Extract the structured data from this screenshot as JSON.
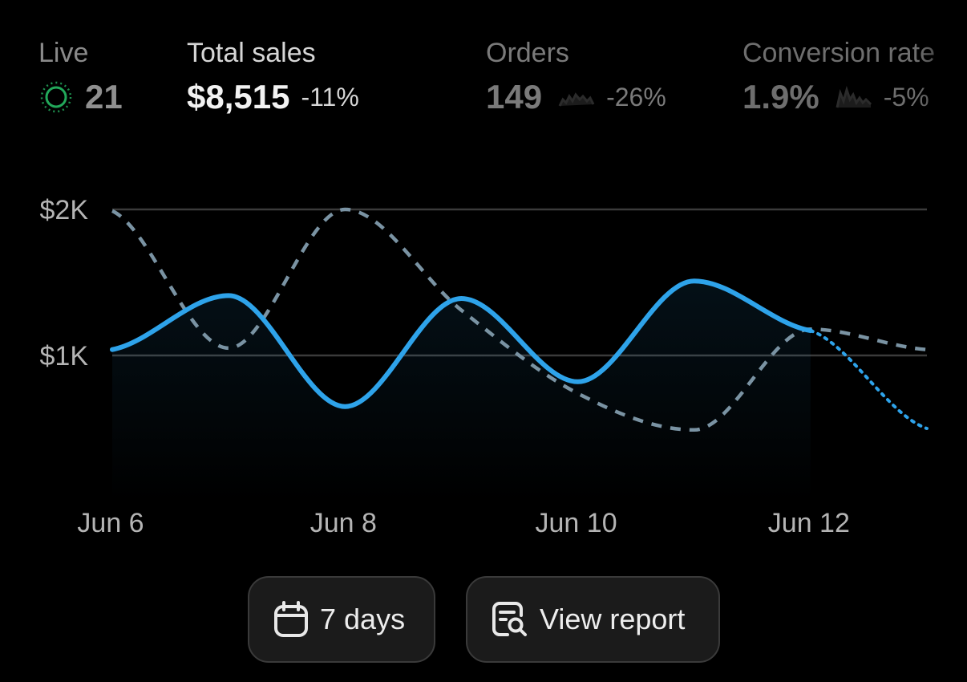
{
  "metrics": {
    "live": {
      "label": "Live",
      "value": "21"
    },
    "total_sales": {
      "label": "Total sales",
      "value": "$8,515",
      "delta": "-11%"
    },
    "orders": {
      "label": "Orders",
      "value": "149",
      "delta": "-26%"
    },
    "conversion_rate": {
      "label": "Conversion rate",
      "value": "1.9%",
      "delta": "-5%"
    }
  },
  "colors": {
    "current_series": "#2ea3ea",
    "comparison_series": "#7a93a3",
    "live_indicator": "#1e8f4e",
    "gridline": "#3b3b3b",
    "button_bg": "#1b1b1b"
  },
  "chart_data": {
    "type": "line",
    "categories": [
      "Jun 6",
      "Jun 7",
      "Jun 8",
      "Jun 9",
      "Jun 10",
      "Jun 11",
      "Jun 12",
      "Jun 13"
    ],
    "x_tick_labels": [
      "Jun 6",
      "Jun 8",
      "Jun 10",
      "Jun 12"
    ],
    "y_tick_labels": [
      "$2K",
      "$1K"
    ],
    "ylim": [
      0,
      2000
    ],
    "grid": true,
    "series": [
      {
        "style": "solid-with-area",
        "values": [
          1040,
          1410,
          650,
          1390,
          820,
          1510,
          1170,
          500
        ],
        "dotted_from_index": 6
      },
      {
        "style": "dashed",
        "values": [
          1990,
          1050,
          2000,
          1310,
          740,
          490,
          1180,
          1040
        ]
      }
    ]
  },
  "buttons": {
    "date_range": {
      "label": "7 days",
      "icon": "calendar-icon"
    },
    "view_report": {
      "label": "View report",
      "icon": "report-search-icon"
    }
  }
}
